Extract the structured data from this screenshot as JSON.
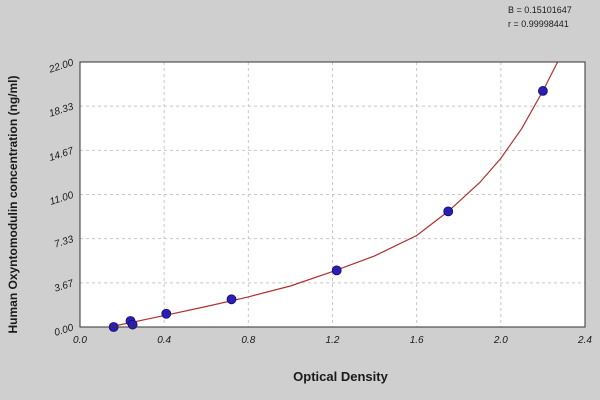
{
  "colors": {
    "background": "#cfcfcf",
    "plot_background": "#ffffff",
    "curve": "#b03030",
    "point": "#2a1fb0",
    "gridline": "#c8c8c8"
  },
  "stats": {
    "line1": "B = 0.15101647",
    "line2": "r = 0.99998441"
  },
  "chart_data": {
    "type": "scatter",
    "xlabel": "Optical Density",
    "ylabel": "Human Oxyntomodulin  concentration (ng/ml)",
    "xlim": [
      0.0,
      2.4
    ],
    "ylim": [
      0.0,
      22.0
    ],
    "x_ticks": [
      "0.0",
      "0.4",
      "0.8",
      "1.2",
      "1.6",
      "2.0",
      "2.4"
    ],
    "y_ticks": [
      "0.00",
      "3.67",
      "7.33",
      "11.00",
      "14.67",
      "18.33",
      "22.00"
    ],
    "grid": true,
    "series": [
      {
        "points": [
          {
            "x": 0.16,
            "y": 0.0
          },
          {
            "x": 0.24,
            "y": 0.5
          },
          {
            "x": 0.25,
            "y": 0.2
          },
          {
            "x": 0.41,
            "y": 1.1
          },
          {
            "x": 0.72,
            "y": 2.3
          },
          {
            "x": 1.22,
            "y": 4.7
          },
          {
            "x": 1.75,
            "y": 9.6
          },
          {
            "x": 2.2,
            "y": 19.6
          }
        ]
      }
    ],
    "fit_curve": [
      {
        "x": 0.14,
        "y": 0.0
      },
      {
        "x": 0.25,
        "y": 0.4
      },
      {
        "x": 0.4,
        "y": 0.95
      },
      {
        "x": 0.6,
        "y": 1.7
      },
      {
        "x": 0.8,
        "y": 2.5
      },
      {
        "x": 1.0,
        "y": 3.4
      },
      {
        "x": 1.2,
        "y": 4.6
      },
      {
        "x": 1.4,
        "y": 5.9
      },
      {
        "x": 1.6,
        "y": 7.6
      },
      {
        "x": 1.75,
        "y": 9.6
      },
      {
        "x": 1.9,
        "y": 12.0
      },
      {
        "x": 2.0,
        "y": 14.0
      },
      {
        "x": 2.1,
        "y": 16.5
      },
      {
        "x": 2.2,
        "y": 19.6
      },
      {
        "x": 2.27,
        "y": 22.0
      }
    ]
  }
}
